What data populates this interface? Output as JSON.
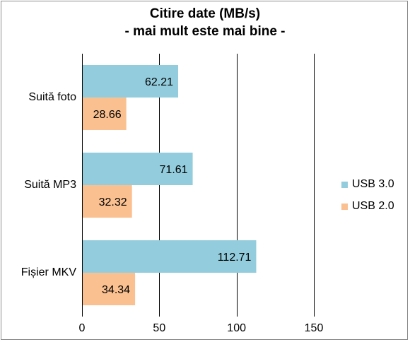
{
  "chart_data": {
    "type": "bar",
    "orientation": "horizontal",
    "title_lines": [
      "Citire date (MB/s)",
      "- mai mult este mai bine -"
    ],
    "categories": [
      "Suită foto",
      "Suită MP3",
      "Fișier MKV"
    ],
    "series": [
      {
        "name": "USB 3.0",
        "color": "#93cddd",
        "values": [
          62.21,
          71.61,
          112.71
        ],
        "labels": [
          "62.21",
          "71.61",
          "112.71"
        ]
      },
      {
        "name": "USB 2.0",
        "color": "#fac090",
        "values": [
          28.66,
          32.32,
          34.34
        ],
        "labels": [
          "28.66",
          "32.32",
          "34.34"
        ]
      }
    ],
    "xlim": [
      0,
      150
    ],
    "xticks": [
      0,
      50,
      100,
      150
    ],
    "xtick_labels": [
      "0",
      "50",
      "100",
      "150"
    ],
    "xlabel": "",
    "ylabel": "",
    "grid": "vertical",
    "gridline_color": "#000000",
    "legend_position": "right"
  }
}
